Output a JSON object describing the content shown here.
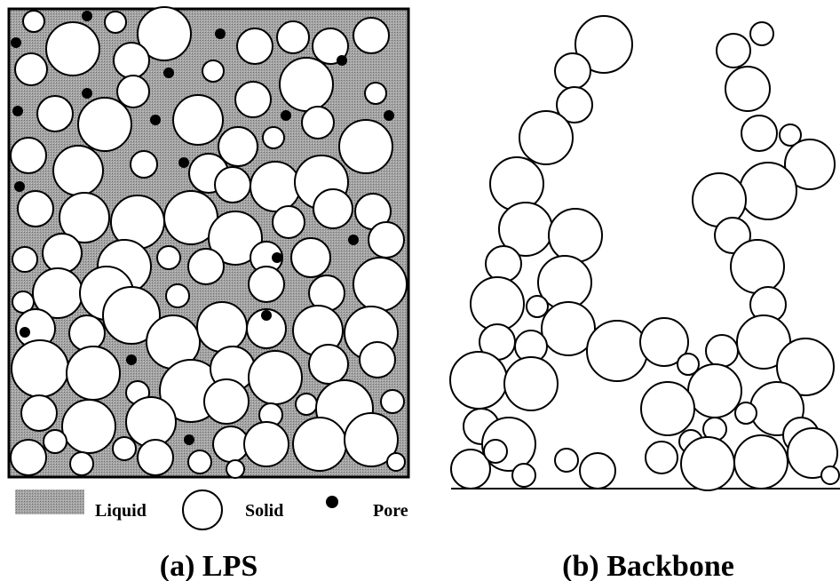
{
  "legend": [
    "Liquid",
    "Solid",
    "Pore"
  ],
  "captions": [
    "(a) LPS",
    "(b) Backbone"
  ]
}
